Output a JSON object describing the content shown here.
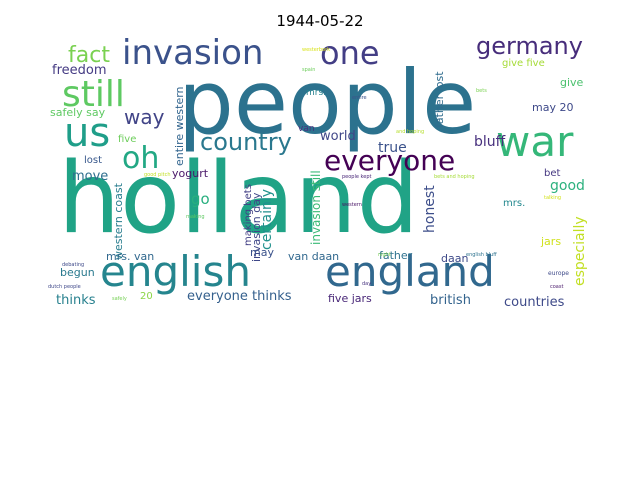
{
  "title": "1944-05-22",
  "words": [
    {
      "text": "holland",
      "color": "#20a386"
    },
    {
      "text": "people",
      "color": "#2c728e"
    },
    {
      "text": "english",
      "color": "#25858e"
    },
    {
      "text": "england",
      "color": "#31688e"
    },
    {
      "text": "war",
      "color": "#35b779"
    },
    {
      "text": "invasion",
      "color": "#3b528b"
    },
    {
      "text": "one",
      "color": "#433e85"
    },
    {
      "text": "us",
      "color": "#1f9e89"
    },
    {
      "text": "still",
      "color": "#5ec962"
    },
    {
      "text": "germany",
      "color": "#472d7b"
    },
    {
      "text": "everyone",
      "color": "#440154"
    },
    {
      "text": "country",
      "color": "#2a788e"
    },
    {
      "text": "oh",
      "color": "#22a884"
    },
    {
      "text": "fact",
      "color": "#7ad151"
    },
    {
      "text": "way",
      "color": "#414487"
    },
    {
      "text": "freedom",
      "color": "#443a83"
    },
    {
      "text": "mrs.",
      "color": "#26828e"
    },
    {
      "text": "give five",
      "color": "#a5db36"
    },
    {
      "text": "give",
      "color": "#4ac16d"
    },
    {
      "text": "may 20",
      "color": "#3e4989"
    },
    {
      "text": "father lost",
      "color": "#2f6c8e"
    },
    {
      "text": "entire western",
      "color": "#32658e"
    },
    {
      "text": "safely say",
      "color": "#5ec962"
    },
    {
      "text": "five",
      "color": "#6ccd5a"
    },
    {
      "text": "lost",
      "color": "#38588c"
    },
    {
      "text": "move",
      "color": "#2e6e8e"
    },
    {
      "text": "world",
      "color": "#404688"
    },
    {
      "text": "van",
      "color": "#46337f"
    },
    {
      "text": "invasion still",
      "color": "#3aba76"
    },
    {
      "text": "certainly",
      "color": "#21918c"
    },
    {
      "text": "bluff",
      "color": "#472f7d"
    },
    {
      "text": "true",
      "color": "#3b528b"
    },
    {
      "text": "good",
      "color": "#2cb17e"
    },
    {
      "text": "bet",
      "color": "#453781"
    },
    {
      "text": "especially",
      "color": "#c2df23"
    },
    {
      "text": "honest",
      "color": "#3d4e8a"
    },
    {
      "text": "yogurt",
      "color": "#481668"
    },
    {
      "text": "go",
      "color": "#29af7f"
    },
    {
      "text": "western coast",
      "color": "#287d8e"
    },
    {
      "text": "invasion day",
      "color": "#3f4788"
    },
    {
      "text": "making bets",
      "color": "#423f85"
    },
    {
      "text": "mrs. van",
      "color": "#31688e"
    },
    {
      "text": "may",
      "color": "#3b528b"
    },
    {
      "text": "van daan",
      "color": "#31688e"
    },
    {
      "text": "father",
      "color": "#2d718e"
    },
    {
      "text": "daan",
      "color": "#3e4a89"
    },
    {
      "text": "mrs.",
      "color": "#23888e"
    },
    {
      "text": "jars",
      "color": "#d0e11c"
    },
    {
      "text": "begun",
      "color": "#29798e"
    },
    {
      "text": "thinks",
      "color": "#27808e"
    },
    {
      "text": "20",
      "color": "#8bd646"
    },
    {
      "text": "everyone thinks",
      "color": "#35608d"
    },
    {
      "text": "five jars",
      "color": "#482677"
    },
    {
      "text": "british",
      "color": "#33638d"
    },
    {
      "text": "countries",
      "color": "#3e4a89"
    },
    {
      "text": "westerbork",
      "color": "#d8e219"
    },
    {
      "text": "spain",
      "color": "#6ccd5a"
    },
    {
      "text": "entire",
      "color": "#3b528b"
    },
    {
      "text": "bets",
      "color": "#7ad151"
    },
    {
      "text": "and hoping",
      "color": "#b5de2b"
    },
    {
      "text": "good pitch",
      "color": "#c2df23"
    },
    {
      "text": "people kept",
      "color": "#482677"
    },
    {
      "text": "bets and hoping",
      "color": "#a5db36"
    },
    {
      "text": "talking",
      "color": "#d2e21b"
    },
    {
      "text": "western",
      "color": "#471365"
    },
    {
      "text": "making",
      "color": "#5ec962"
    },
    {
      "text": "debating",
      "color": "#3e4989"
    },
    {
      "text": "dutch people",
      "color": "#3f4889"
    },
    {
      "text": "safely",
      "color": "#75d054"
    },
    {
      "text": "night",
      "color": "#7ad151"
    },
    {
      "text": "day",
      "color": "#46327e"
    },
    {
      "text": "english bluff",
      "color": "#2c728e"
    },
    {
      "text": "europe",
      "color": "#3e4a89"
    },
    {
      "text": "coast",
      "color": "#48186a"
    }
  ]
}
